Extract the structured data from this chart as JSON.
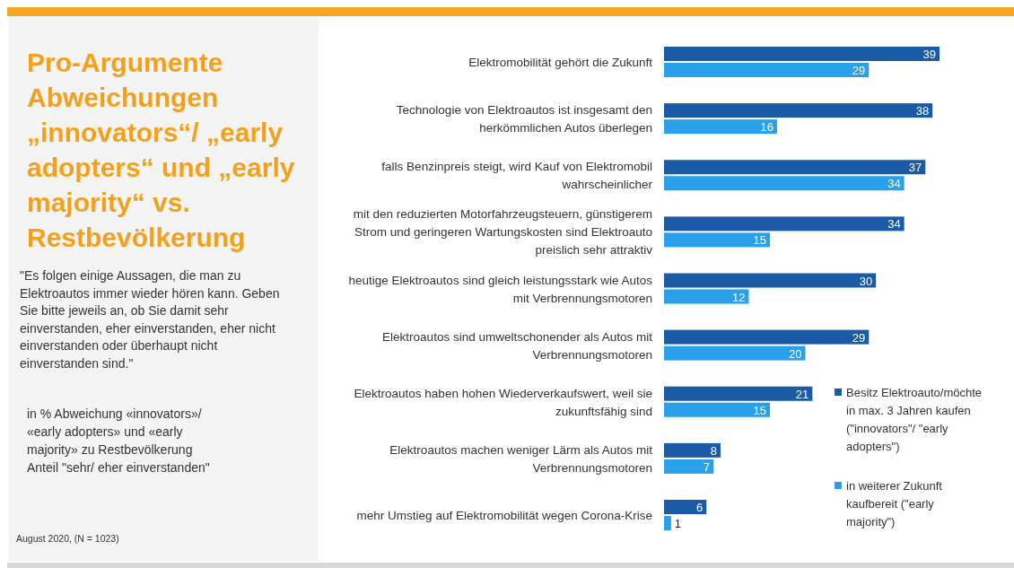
{
  "chart_data": {
    "type": "bar",
    "orientation": "horizontal",
    "title": "Pro-Argumente Abweichungen „innovators“/ „early adopters“ und „early majority“ vs. Restbevölkerung",
    "subtitle": "\"Es folgen einige Aussagen, die man zu Elektroautos immer wieder hören kann. Geben Sie bitte jeweils an, ob Sie damit sehr einverstanden, eher einverstanden, eher nicht einverstanden oder überhaupt nicht einverstanden sind.\"",
    "annotations": [
      "in % Abweichung «innovators»/ «early adopters» und «early majority» zu Restbevölkerung Anteil \"sehr/ eher einverstanden\"",
      "August 2020, (N = 1023)"
    ],
    "categories": [
      "Elektromobilität gehört die Zukunft",
      "Technologie von Elektroautos ist insgesamt den herkömmlichen Autos überlegen",
      "falls Benzinpreis steigt, wird Kauf von Elektromobil wahrscheinlicher",
      "mit den reduzierten Motorfahrzeugsteuern, günstigerem Strom und geringeren Wartungskosten sind Elektroauto preislich sehr attraktiv",
      "heutige Elektroautos sind gleich leistungsstark wie Autos mit Verbrennungsmotoren",
      "Elektroautos sind umweltschonender als Autos mit Verbrennungsmotoren",
      "Elektroautos haben hohen Wiederverkaufswert, weil sie zukunftsfähig sind",
      "Elektroautos machen weniger Lärm als Autos mit Verbrennungsmotoren",
      "mehr Umstieg auf Elektromobilität wegen Corona-Krise"
    ],
    "series": [
      {
        "name": "Besitz Elektroauto/möchte in max. 3 Jahren kaufen (\"innovators\"/ \"early adopters\")",
        "color": "#1b5ba5",
        "values": [
          39,
          38,
          37,
          34,
          30,
          29,
          21,
          8,
          6
        ]
      },
      {
        "name": "in weiterer Zukunft kaufbereit (\"early majority\")",
        "color": "#2ba0ea",
        "values": [
          29,
          16,
          34,
          15,
          12,
          20,
          15,
          7,
          1
        ]
      }
    ],
    "data_labels": true,
    "legend": "bottom right"
  }
}
